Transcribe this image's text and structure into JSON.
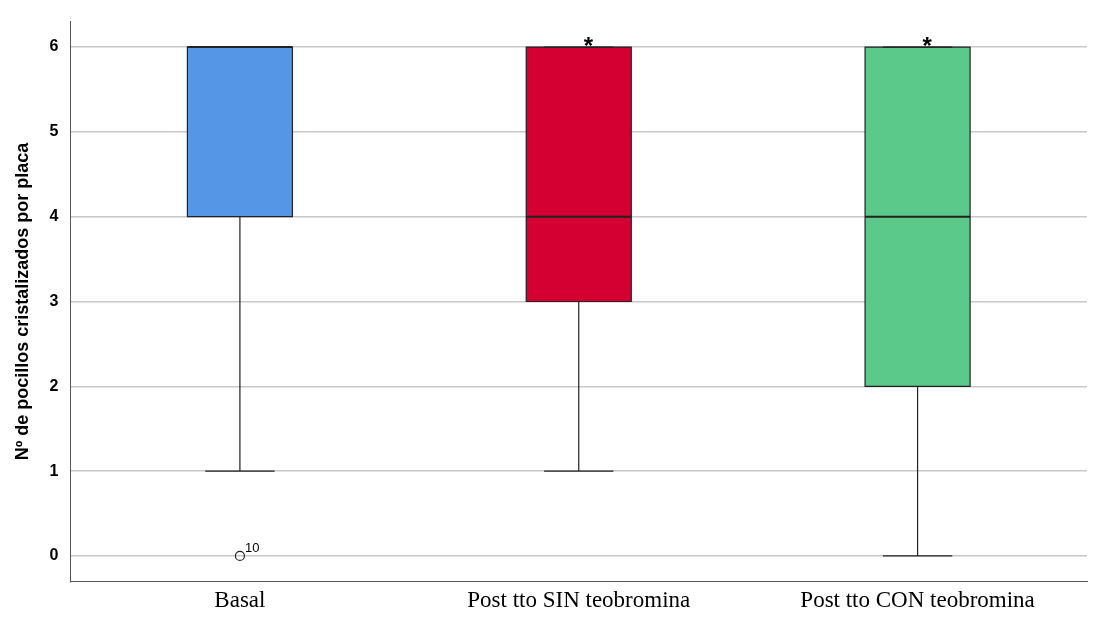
{
  "chart_data": {
    "type": "box",
    "ylabel": "Nº de pocillos cristalizados por placa",
    "categories": [
      "Basal",
      "Post tto SIN teobromina",
      "Post tto CON teobromina"
    ],
    "boxes": [
      {
        "low": 1,
        "q1": 4,
        "median": 6,
        "q3": 6,
        "high": 6,
        "outliers": [
          0
        ]
      },
      {
        "low": 1,
        "q1": 3,
        "median": 4,
        "q3": 6,
        "high": 6
      },
      {
        "low": 0,
        "q1": 2,
        "median": 4,
        "q3": 6,
        "high": 6
      }
    ],
    "colors": [
      "#5596e6",
      "#d50032",
      "#5bc98a"
    ],
    "ylim": [
      -0.3,
      6.3
    ],
    "yticks": [
      0,
      1,
      2,
      3,
      4,
      5,
      6
    ],
    "grid": "y",
    "annotations": [
      "10",
      {
        "text": "*",
        "x": "Post tto SIN teobromina",
        "y": 6
      },
      {
        "text": "*",
        "x": "Post tto CON teobromina",
        "y": 6
      }
    ]
  }
}
